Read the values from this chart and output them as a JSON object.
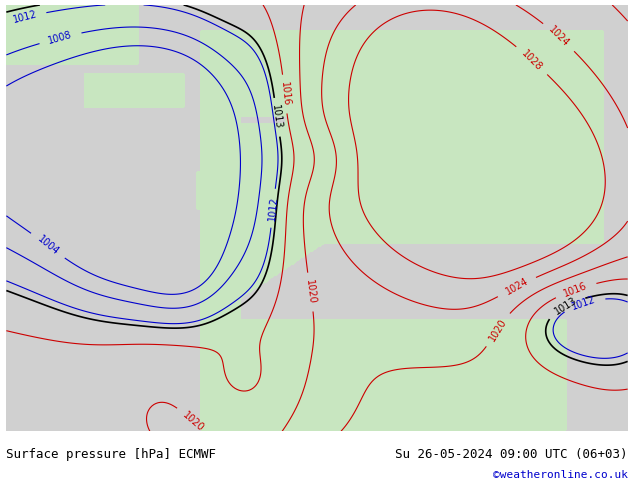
{
  "title_left": "Surface pressure [hPa] ECMWF",
  "title_right": "Su 26-05-2024 09:00 UTC (06+03)",
  "copyright": "©weatheronline.co.uk",
  "bg_ocean": "#d0d0d0",
  "bg_land": "#c8e6c0",
  "contour_low_color": "#0000cc",
  "contour_high_color": "#cc0000",
  "contour_1013_color": "#000000",
  "label_fontsize": 7,
  "footer_fontsize": 9,
  "figsize": [
    6.34,
    4.9
  ],
  "dpi": 100,
  "lon_min": -35,
  "lon_max": 45,
  "lat_min": 25,
  "lat_max": 75,
  "pressure_levels_blue": [
    1004,
    1008,
    1012
  ],
  "pressure_levels_red": [
    1016,
    1020,
    1024,
    1028
  ],
  "pressure_level_black": [
    1013
  ]
}
